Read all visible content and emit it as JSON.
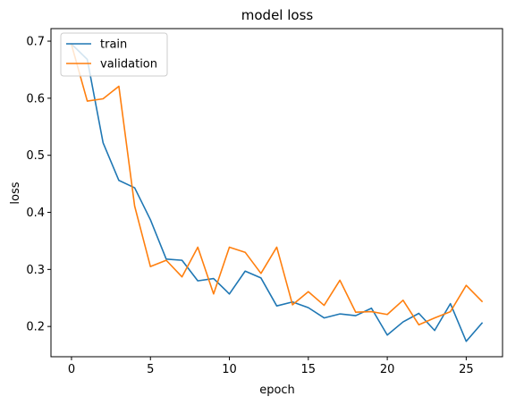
{
  "chart_data": {
    "type": "line",
    "title": "model loss",
    "xlabel": "epoch",
    "ylabel": "loss",
    "x": [
      0,
      1,
      2,
      3,
      4,
      5,
      6,
      7,
      8,
      9,
      10,
      11,
      12,
      13,
      14,
      15,
      16,
      17,
      18,
      19,
      20,
      21,
      22,
      23,
      24,
      25,
      26
    ],
    "xlim": [
      -1.3,
      27.3
    ],
    "ylim": [
      0.147,
      0.722
    ],
    "xticks": [
      "0",
      "5",
      "10",
      "15",
      "20",
      "25"
    ],
    "yticks": [
      "0.2",
      "0.3",
      "0.4",
      "0.5",
      "0.6",
      "0.7"
    ],
    "legend_position": "top-left",
    "grid": false,
    "series": [
      {
        "name": "train",
        "color": "#1f77b4",
        "values": [
          0.695,
          0.668,
          0.522,
          0.456,
          0.443,
          0.387,
          0.318,
          0.316,
          0.28,
          0.284,
          0.257,
          0.297,
          0.285,
          0.236,
          0.243,
          0.233,
          0.215,
          0.222,
          0.219,
          0.232,
          0.185,
          0.208,
          0.223,
          0.193,
          0.24,
          0.174,
          0.206
        ]
      },
      {
        "name": "validation",
        "color": "#ff7f0e",
        "values": [
          0.694,
          0.595,
          0.599,
          0.621,
          0.411,
          0.305,
          0.316,
          0.287,
          0.339,
          0.257,
          0.339,
          0.33,
          0.293,
          0.339,
          0.238,
          0.261,
          0.237,
          0.281,
          0.225,
          0.226,
          0.221,
          0.246,
          0.203,
          0.215,
          0.226,
          0.272,
          0.244
        ]
      }
    ]
  }
}
